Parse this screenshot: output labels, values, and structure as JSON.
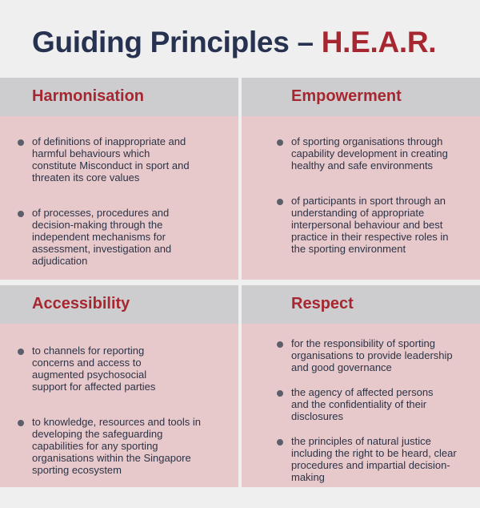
{
  "title": {
    "main": "Guiding Principles – ",
    "accent": "H.E.A.R."
  },
  "colors": {
    "navy": "#273250",
    "red": "#a72730",
    "header_gray": "#cdcdd0",
    "pink": "#e8c9cb",
    "bullet": "#5b5f69"
  },
  "sections": [
    {
      "heading": "Harmonisation",
      "items": [
        "of definitions of inappropriate and harmful behaviours which constitute Misconduct in sport and threaten its core values",
        "of processes, procedures and decision-making through the independent mechanisms for assessment, investigation and adjudication"
      ]
    },
    {
      "heading": "Empowerment",
      "items": [
        "of sporting organisations through capability development in creating healthy and safe environments",
        "of participants in sport through an understanding of appropriate interpersonal behaviour and best practice in their respective roles in the sporting environment"
      ]
    },
    {
      "heading": "Accessibility",
      "items": [
        "to channels for reporting concerns and access to augmented psychosocial support for affected parties",
        "to knowledge, resources and tools in developing the safeguarding capabilities for any sporting organisations within the Singapore sporting ecosystem"
      ]
    },
    {
      "heading": "Respect",
      "items": [
        "for the responsibility of sporting organisations to provide leadership and good governance",
        "the agency of affected persons and the confidentiality of their disclosures",
        "the principles of natural justice including the right to be heard, clear procedures and impartial decision-making"
      ]
    }
  ]
}
